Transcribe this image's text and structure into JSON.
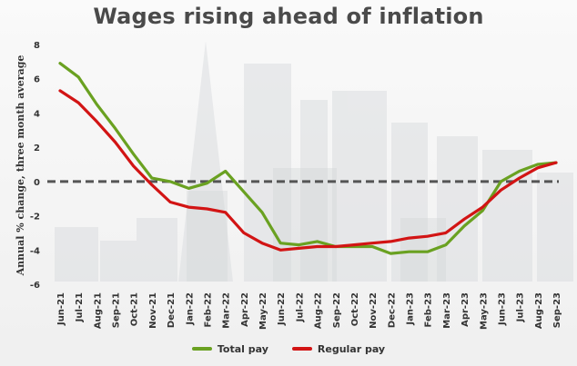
{
  "chart_data": {
    "type": "line",
    "title": "Wages rising ahead of inflation",
    "ylabel": "Annual % change, three month average",
    "xlabel": "",
    "ylim": [
      -6,
      8
    ],
    "yticks": [
      "8",
      "6",
      "4",
      "2",
      "0",
      "-2",
      "-4",
      "-6"
    ],
    "categories": [
      "Jun-21",
      "Jul-21",
      "Aug-21",
      "Sep-21",
      "Oct-21",
      "Nov-21",
      "Dec-21",
      "Jan-22",
      "Feb-22",
      "Mar-22",
      "Apr-22",
      "May-22",
      "Jun-22",
      "Jul-22",
      "Aug-22",
      "Sep-22",
      "Oct-22",
      "Nov-22",
      "Dec-22",
      "Jan-23",
      "Feb-23",
      "Mar-23",
      "Apr-23",
      "May-23",
      "Jun-23",
      "Jul-23",
      "Aug-23",
      "Sep-23"
    ],
    "series": [
      {
        "name": "Total pay",
        "color": "#6aa121",
        "values": [
          6.9,
          6.1,
          4.5,
          3.1,
          1.6,
          0.2,
          0.0,
          -0.4,
          -0.1,
          0.6,
          -0.6,
          -1.8,
          -3.6,
          -3.7,
          -3.5,
          -3.8,
          -3.8,
          -3.8,
          -4.2,
          -4.1,
          -4.1,
          -3.7,
          -2.6,
          -1.7,
          0.0,
          0.6,
          1.0,
          1.1
        ]
      },
      {
        "name": "Regular pay",
        "color": "#d21414",
        "values": [
          5.3,
          4.6,
          3.5,
          2.3,
          0.9,
          -0.2,
          -1.2,
          -1.5,
          -1.6,
          -1.8,
          -3.0,
          -3.6,
          -4.0,
          -3.9,
          -3.8,
          -3.8,
          -3.7,
          -3.6,
          -3.5,
          -3.3,
          -3.2,
          -3.0,
          -2.2,
          -1.5,
          -0.5,
          0.2,
          0.8,
          1.1
        ]
      }
    ],
    "zero_line": {
      "style": "dashed",
      "color": "#555555"
    },
    "grid": false,
    "legend_position": "bottom-center"
  }
}
